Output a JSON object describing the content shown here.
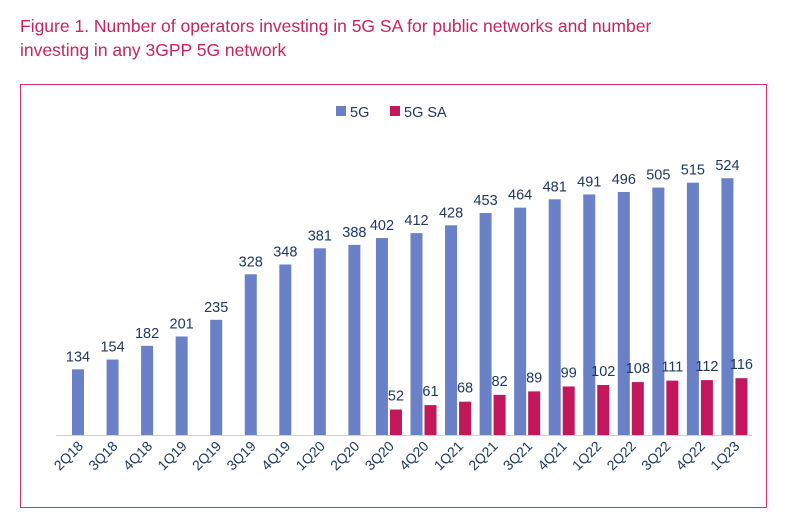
{
  "figure": {
    "title_line1": "Figure 1. Number of operators investing in 5G SA for public networks and number",
    "title_line2": "investing in any 3GPP 5G network"
  },
  "colors": {
    "5G": "#6a80c7",
    "5G SA": "#c2185b",
    "frame": "#d7316e",
    "text": "#1f3864"
  },
  "chart_data": {
    "type": "bar",
    "title": "Number of operators investing in 5G SA for public networks and number investing in any 3GPP 5G network",
    "xlabel": "",
    "ylabel": "",
    "ylim": [
      0,
      560
    ],
    "grid": false,
    "legend_position": "top-center",
    "categories": [
      "2Q18",
      "3Q18",
      "4Q18",
      "1Q19",
      "2Q19",
      "3Q19",
      "4Q19",
      "1Q20",
      "2Q20",
      "3Q20",
      "4Q20",
      "1Q21",
      "2Q21",
      "3Q21",
      "4Q21",
      "1Q22",
      "2Q22",
      "3Q22",
      "4Q22",
      "1Q23"
    ],
    "series": [
      {
        "name": "5G",
        "values": [
          134,
          154,
          182,
          201,
          235,
          328,
          348,
          381,
          388,
          402,
          412,
          428,
          453,
          464,
          481,
          491,
          496,
          505,
          515,
          524
        ]
      },
      {
        "name": "5G SA",
        "values": [
          null,
          null,
          null,
          null,
          null,
          null,
          null,
          null,
          null,
          52,
          61,
          68,
          82,
          89,
          99,
          102,
          108,
          111,
          112,
          116
        ]
      }
    ]
  }
}
